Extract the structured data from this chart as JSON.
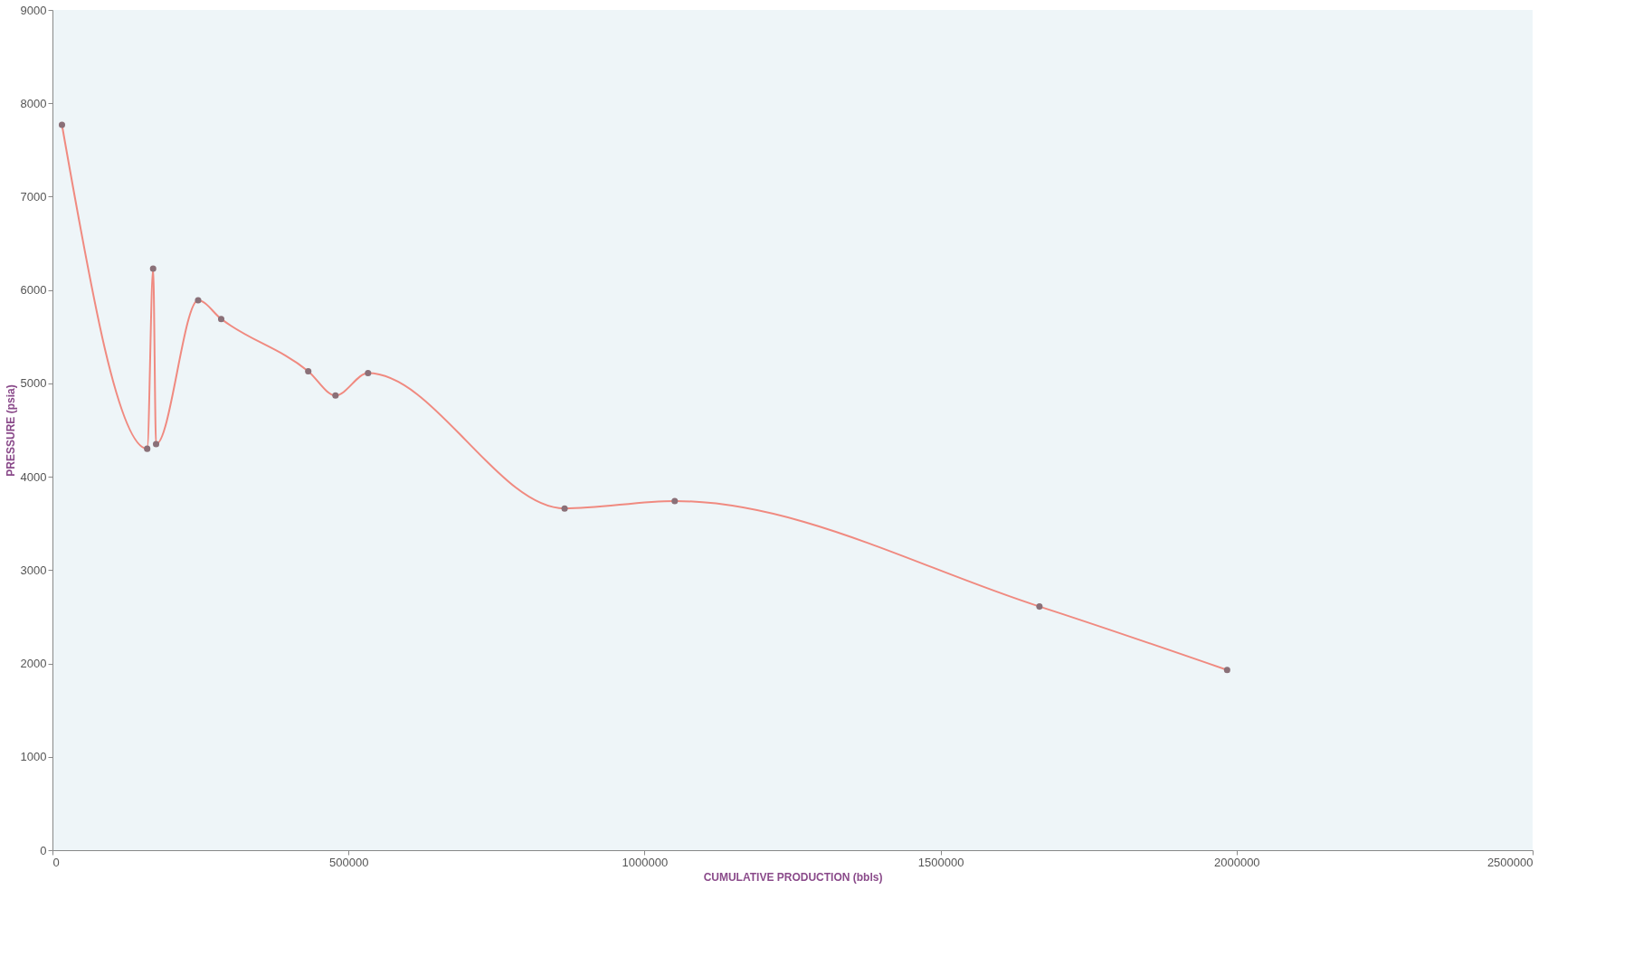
{
  "chart_data": {
    "type": "line",
    "xlabel": "CUMULATIVE PRODUCTION (bbls)",
    "ylabel": "PRESSURE (psia)",
    "x": [
      16000,
      160000,
      170000,
      175000,
      246000,
      285000,
      432000,
      478000,
      533000,
      865000,
      1051000,
      1667000,
      1984000
    ],
    "series": [
      {
        "color": "#f08a80",
        "values": [
          7770,
          4300,
          6230,
          4350,
          5890,
          5690,
          5130,
          4870,
          5110,
          3660,
          3740,
          2610,
          1930
        ]
      }
    ],
    "xlim": [
      0,
      2500000
    ],
    "xticks": [
      0,
      500000,
      1000000,
      1500000,
      2000000,
      2500000
    ],
    "ylim": [
      0,
      9000
    ],
    "yticks": [
      0,
      1000,
      2000,
      3000,
      4000,
      5000,
      6000,
      7000,
      8000,
      9000
    ],
    "grid": false,
    "marker": "circle",
    "line_style": "solid"
  }
}
